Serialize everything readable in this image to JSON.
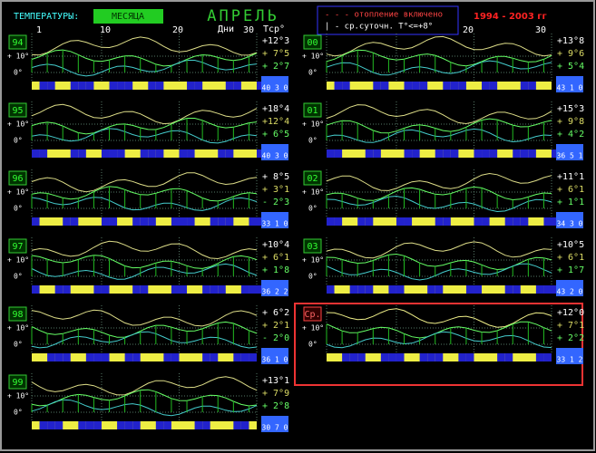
{
  "header": {
    "label": "ТЕМПЕРАТУРЫ:",
    "button": "МЕСЯЦА",
    "month": "АПРЕЛЬ",
    "days": "Дни",
    "tavg": "Tср°",
    "legend": [
      "- - -  отопление включено",
      "|  - ср.суточн. T°<=+8°"
    ],
    "period": "1994 - 2003 гг"
  },
  "axis": {
    "days_left": [
      "1",
      "10",
      "20",
      "30"
    ],
    "days_right": [
      "20",
      "30"
    ],
    "y_labels": [
      "+ 10°",
      "0°"
    ]
  },
  "panels": [
    {
      "id": "94",
      "max": "+12°3",
      "mean": "+ 7°5",
      "min": "+ 2°7",
      "counts": "40 3 0"
    },
    {
      "id": "95",
      "max": "+18°4",
      "mean": "+12°4",
      "min": "+ 6°5",
      "counts": "40 3 0"
    },
    {
      "id": "96",
      "max": "+ 8°5",
      "mean": "+ 3°1",
      "min": "- 2°3",
      "counts": "33 1 0"
    },
    {
      "id": "97",
      "max": "+10°4",
      "mean": "+ 6°1",
      "min": "+ 1°8",
      "counts": "36 2 2"
    },
    {
      "id": "98",
      "max": "+ 6°2",
      "mean": "+ 2°1",
      "min": "- 2°0",
      "counts": "36 1 0"
    },
    {
      "id": "99",
      "max": "+13°1",
      "mean": "+ 7°9",
      "min": "+ 2°8",
      "counts": "30 7 0"
    },
    {
      "id": "00",
      "max": "+13°8",
      "mean": "+ 9°6",
      "min": "+ 5°4",
      "counts": "43 1 0"
    },
    {
      "id": "01",
      "max": "+15°3",
      "mean": "+ 9°8",
      "min": "+ 4°2",
      "counts": "36 5 1"
    },
    {
      "id": "02",
      "max": "+11°1",
      "mean": "+ 6°1",
      "min": "+ 1°1",
      "counts": "34 3 0"
    },
    {
      "id": "03",
      "max": "+10°5",
      "mean": "+ 6°1",
      "min": "+ 1°7",
      "counts": "43 2 0"
    },
    {
      "id": "Ср.",
      "max": "+12°0",
      "mean": "+ 7°1",
      "min": "+ 2°2",
      "counts": "33 1 2"
    }
  ]
}
